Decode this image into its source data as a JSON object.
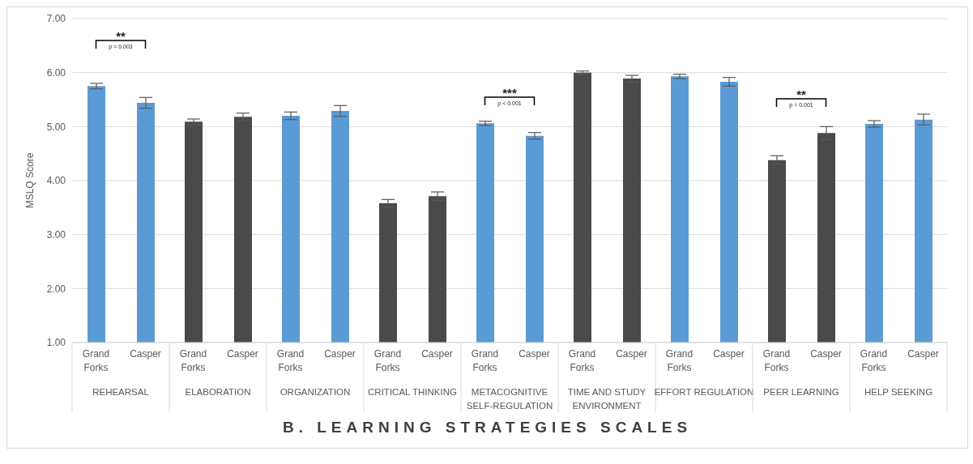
{
  "chart_data": {
    "type": "bar",
    "title": "B. LEARNING STRATEGIES SCALES",
    "ylabel": "MSLQ Score",
    "categories": [
      "REHEARSAL",
      "ELABORATION",
      "ORGANIZATION",
      "CRITICAL THINKING",
      "METACOGNITIVE SELF-REGULATION",
      "TIME AND STUDY ENVIRONMENT",
      "EFFORT REGULATION",
      "PEER LEARNING",
      "HELP SEEKING"
    ],
    "series": [
      {
        "name": "Grand Forks",
        "colors": [
          "#5b9bd5",
          "#4a4a4a",
          "#5b9bd5",
          "#4a4a4a",
          "#5b9bd5",
          "#4a4a4a",
          "#5b9bd5",
          "#4a4a4a",
          "#5b9bd5"
        ],
        "values": [
          5.75,
          5.09,
          5.2,
          3.58,
          5.06,
          6.0,
          5.93,
          4.38,
          5.05
        ],
        "errors": [
          0.05,
          0.05,
          0.07,
          0.07,
          0.04,
          0.03,
          0.04,
          0.08,
          0.06
        ]
      },
      {
        "name": "Casper",
        "colors": [
          "#5b9bd5",
          "#4a4a4a",
          "#5b9bd5",
          "#4a4a4a",
          "#5b9bd5",
          "#4a4a4a",
          "#5b9bd5",
          "#4a4a4a",
          "#5b9bd5"
        ],
        "values": [
          5.44,
          5.18,
          5.29,
          3.71,
          4.83,
          5.89,
          5.83,
          4.88,
          5.13
        ],
        "errors": [
          0.1,
          0.07,
          0.1,
          0.08,
          0.06,
          0.06,
          0.08,
          0.12,
          0.1
        ]
      }
    ],
    "ylim": [
      1,
      7
    ],
    "yticks": [
      {
        "value": 1,
        "label": "1.00"
      },
      {
        "value": 2,
        "label": "2.00"
      },
      {
        "value": 3,
        "label": "3.00"
      },
      {
        "value": 4,
        "label": "4.00"
      },
      {
        "value": 5,
        "label": "5.00"
      },
      {
        "value": 6,
        "label": "6.00"
      },
      {
        "value": 7,
        "label": "7.00"
      }
    ],
    "grid": "y",
    "legend": false,
    "annotations": [
      "**",
      "p = 0.003",
      "***",
      "p < 0.001",
      "**",
      "p = 0.001"
    ]
  }
}
